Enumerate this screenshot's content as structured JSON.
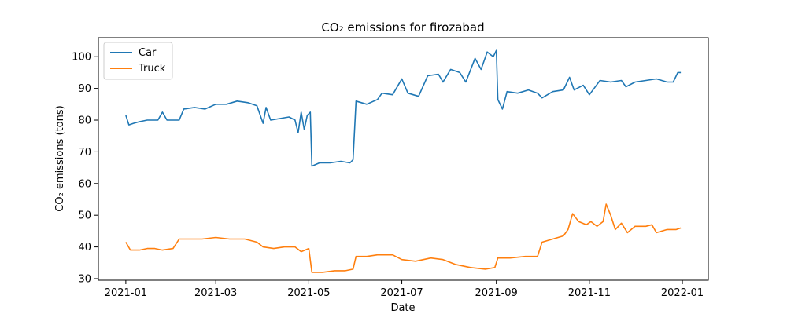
{
  "chart_data": {
    "type": "line",
    "title": "CO₂ emissions for firozabad",
    "xlabel": "Date",
    "ylabel": "CO₂ emissions (tons)",
    "xlim": [
      "2020-12-14",
      "2022-01-18"
    ],
    "ylim": [
      29.5,
      106
    ],
    "x_ticks": [
      "2021-01",
      "2021-03",
      "2021-05",
      "2021-07",
      "2021-09",
      "2021-11",
      "2022-01"
    ],
    "y_ticks": [
      30,
      40,
      50,
      60,
      70,
      80,
      90,
      100
    ],
    "grid": false,
    "legend_position": "top-left",
    "series": [
      {
        "name": "Car",
        "color": "#1f77b4",
        "points": [
          [
            "2021-01-01",
            81.5
          ],
          [
            "2021-01-03",
            78.5
          ],
          [
            "2021-01-06",
            79.0
          ],
          [
            "2021-01-10",
            79.5
          ],
          [
            "2021-01-15",
            80.0
          ],
          [
            "2021-01-22",
            80.0
          ],
          [
            "2021-01-25",
            82.5
          ],
          [
            "2021-01-28",
            80.0
          ],
          [
            "2021-02-05",
            80.0
          ],
          [
            "2021-02-08",
            83.5
          ],
          [
            "2021-02-15",
            84.0
          ],
          [
            "2021-02-22",
            83.5
          ],
          [
            "2021-03-01",
            85.0
          ],
          [
            "2021-03-08",
            85.0
          ],
          [
            "2021-03-15",
            86.0
          ],
          [
            "2021-03-22",
            85.5
          ],
          [
            "2021-03-28",
            84.5
          ],
          [
            "2021-04-01",
            79.0
          ],
          [
            "2021-04-03",
            84.0
          ],
          [
            "2021-04-06",
            80.0
          ],
          [
            "2021-04-12",
            80.5
          ],
          [
            "2021-04-18",
            81.0
          ],
          [
            "2021-04-22",
            80.0
          ],
          [
            "2021-04-24",
            76.0
          ],
          [
            "2021-04-26",
            82.5
          ],
          [
            "2021-04-28",
            77.0
          ],
          [
            "2021-04-30",
            81.5
          ],
          [
            "2021-05-02",
            82.5
          ],
          [
            "2021-05-03",
            65.5
          ],
          [
            "2021-05-08",
            66.5
          ],
          [
            "2021-05-15",
            66.5
          ],
          [
            "2021-05-22",
            67.0
          ],
          [
            "2021-05-28",
            66.5
          ],
          [
            "2021-05-30",
            67.5
          ],
          [
            "2021-06-01",
            86.0
          ],
          [
            "2021-06-08",
            85.0
          ],
          [
            "2021-06-15",
            86.5
          ],
          [
            "2021-06-18",
            88.5
          ],
          [
            "2021-06-25",
            88.0
          ],
          [
            "2021-07-01",
            93.0
          ],
          [
            "2021-07-05",
            88.5
          ],
          [
            "2021-07-12",
            87.5
          ],
          [
            "2021-07-18",
            94.0
          ],
          [
            "2021-07-25",
            94.5
          ],
          [
            "2021-07-28",
            92.0
          ],
          [
            "2021-08-02",
            96.0
          ],
          [
            "2021-08-08",
            95.0
          ],
          [
            "2021-08-12",
            92.0
          ],
          [
            "2021-08-18",
            99.5
          ],
          [
            "2021-08-22",
            96.0
          ],
          [
            "2021-08-26",
            101.5
          ],
          [
            "2021-08-30",
            100.0
          ],
          [
            "2021-09-01",
            102.0
          ],
          [
            "2021-09-02",
            86.5
          ],
          [
            "2021-09-05",
            83.5
          ],
          [
            "2021-09-08",
            89.0
          ],
          [
            "2021-09-15",
            88.5
          ],
          [
            "2021-09-22",
            89.5
          ],
          [
            "2021-09-28",
            88.5
          ],
          [
            "2021-10-01",
            87.0
          ],
          [
            "2021-10-08",
            89.0
          ],
          [
            "2021-10-15",
            89.5
          ],
          [
            "2021-10-19",
            93.5
          ],
          [
            "2021-10-22",
            89.5
          ],
          [
            "2021-10-28",
            91.0
          ],
          [
            "2021-11-01",
            88.0
          ],
          [
            "2021-11-08",
            92.5
          ],
          [
            "2021-11-15",
            92.0
          ],
          [
            "2021-11-22",
            92.5
          ],
          [
            "2021-11-25",
            90.5
          ],
          [
            "2021-12-01",
            92.0
          ],
          [
            "2021-12-08",
            92.5
          ],
          [
            "2021-12-15",
            93.0
          ],
          [
            "2021-12-22",
            92.0
          ],
          [
            "2021-12-26",
            92.0
          ],
          [
            "2021-12-29",
            95.0
          ],
          [
            "2021-12-31",
            95.0
          ]
        ]
      },
      {
        "name": "Truck",
        "color": "#ff7f0e",
        "points": [
          [
            "2021-01-01",
            41.5
          ],
          [
            "2021-01-04",
            39.0
          ],
          [
            "2021-01-10",
            39.0
          ],
          [
            "2021-01-15",
            39.5
          ],
          [
            "2021-01-20",
            39.5
          ],
          [
            "2021-01-25",
            39.0
          ],
          [
            "2021-02-01",
            39.5
          ],
          [
            "2021-02-05",
            42.5
          ],
          [
            "2021-02-12",
            42.5
          ],
          [
            "2021-02-20",
            42.5
          ],
          [
            "2021-03-01",
            43.0
          ],
          [
            "2021-03-10",
            42.5
          ],
          [
            "2021-03-20",
            42.5
          ],
          [
            "2021-03-28",
            41.5
          ],
          [
            "2021-04-01",
            40.0
          ],
          [
            "2021-04-08",
            39.5
          ],
          [
            "2021-04-15",
            40.0
          ],
          [
            "2021-04-22",
            40.0
          ],
          [
            "2021-04-26",
            38.5
          ],
          [
            "2021-05-01",
            39.5
          ],
          [
            "2021-05-03",
            32.0
          ],
          [
            "2021-05-10",
            32.0
          ],
          [
            "2021-05-18",
            32.5
          ],
          [
            "2021-05-25",
            32.5
          ],
          [
            "2021-05-30",
            33.0
          ],
          [
            "2021-06-01",
            37.0
          ],
          [
            "2021-06-08",
            37.0
          ],
          [
            "2021-06-15",
            37.5
          ],
          [
            "2021-06-25",
            37.5
          ],
          [
            "2021-07-01",
            36.0
          ],
          [
            "2021-07-10",
            35.5
          ],
          [
            "2021-07-20",
            36.5
          ],
          [
            "2021-07-28",
            36.0
          ],
          [
            "2021-08-05",
            34.5
          ],
          [
            "2021-08-15",
            33.5
          ],
          [
            "2021-08-25",
            33.0
          ],
          [
            "2021-08-31",
            33.5
          ],
          [
            "2021-09-02",
            36.5
          ],
          [
            "2021-09-10",
            36.5
          ],
          [
            "2021-09-20",
            37.0
          ],
          [
            "2021-09-28",
            37.0
          ],
          [
            "2021-10-01",
            41.5
          ],
          [
            "2021-10-08",
            42.5
          ],
          [
            "2021-10-15",
            43.5
          ],
          [
            "2021-10-18",
            45.5
          ],
          [
            "2021-10-21",
            50.5
          ],
          [
            "2021-10-25",
            48.0
          ],
          [
            "2021-10-30",
            47.0
          ],
          [
            "2021-11-02",
            48.0
          ],
          [
            "2021-11-06",
            46.5
          ],
          [
            "2021-11-10",
            48.0
          ],
          [
            "2021-11-12",
            53.5
          ],
          [
            "2021-11-15",
            50.0
          ],
          [
            "2021-11-18",
            45.5
          ],
          [
            "2021-11-22",
            47.5
          ],
          [
            "2021-11-26",
            44.5
          ],
          [
            "2021-12-01",
            46.5
          ],
          [
            "2021-12-08",
            46.5
          ],
          [
            "2021-12-12",
            47.0
          ],
          [
            "2021-12-15",
            44.5
          ],
          [
            "2021-12-22",
            45.5
          ],
          [
            "2021-12-28",
            45.5
          ],
          [
            "2021-12-31",
            46.0
          ]
        ]
      }
    ]
  }
}
